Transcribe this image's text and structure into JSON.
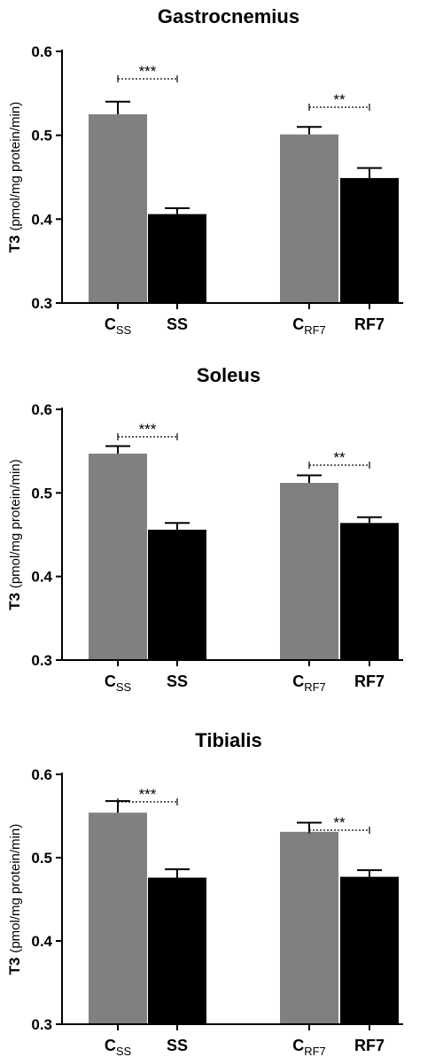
{
  "figure": {
    "colors": {
      "control": "#808080",
      "treated": "#000000",
      "axis": "#000000"
    }
  },
  "chart_data": [
    {
      "type": "bar",
      "title": "Gastrocnemius",
      "ylabel_main": "T3",
      "ylabel_unit": "(pmol/mg protein/min)",
      "ylim": [
        0.3,
        0.6
      ],
      "yticks": [
        0.3,
        0.4,
        0.5,
        0.6
      ],
      "ytick_labels": [
        "0.3",
        "0.4",
        "0.5",
        "0.6"
      ],
      "categories": [
        {
          "main": "C",
          "sub": "SS"
        },
        {
          "main": "SS",
          "sub": ""
        },
        {
          "main": "C",
          "sub": "RF7"
        },
        {
          "main": "RF7",
          "sub": ""
        }
      ],
      "values": [
        0.525,
        0.406,
        0.501,
        0.449
      ],
      "errors": [
        0.015,
        0.007,
        0.009,
        0.012
      ],
      "significance": [
        {
          "from": 0,
          "to": 1,
          "label": "***"
        },
        {
          "from": 2,
          "to": 3,
          "label": "**"
        }
      ],
      "grid": false,
      "legend": "none"
    },
    {
      "type": "bar",
      "title": "Soleus",
      "ylabel_main": "T3",
      "ylabel_unit": "(pmol/mg protein/min)",
      "ylim": [
        0.3,
        0.6
      ],
      "yticks": [
        0.3,
        0.4,
        0.5,
        0.6
      ],
      "ytick_labels": [
        "0.3",
        "0.4",
        "0.5",
        "0.6"
      ],
      "categories": [
        {
          "main": "C",
          "sub": "SS"
        },
        {
          "main": "SS",
          "sub": ""
        },
        {
          "main": "C",
          "sub": "RF7"
        },
        {
          "main": "RF7",
          "sub": ""
        }
      ],
      "values": [
        0.547,
        0.456,
        0.512,
        0.464
      ],
      "errors": [
        0.009,
        0.008,
        0.009,
        0.007
      ],
      "significance": [
        {
          "from": 0,
          "to": 1,
          "label": "***"
        },
        {
          "from": 2,
          "to": 3,
          "label": "**"
        }
      ],
      "grid": false,
      "legend": "none"
    },
    {
      "type": "bar",
      "title": "Tibialis",
      "ylabel_main": "T3",
      "ylabel_unit": "(pmol/mg protein/min)",
      "ylim": [
        0.3,
        0.6
      ],
      "yticks": [
        0.3,
        0.4,
        0.5,
        0.6
      ],
      "ytick_labels": [
        "0.3",
        "0.4",
        "0.5",
        "0.6"
      ],
      "categories": [
        {
          "main": "C",
          "sub": "SS"
        },
        {
          "main": "SS",
          "sub": ""
        },
        {
          "main": "C",
          "sub": "RF7"
        },
        {
          "main": "RF7",
          "sub": ""
        }
      ],
      "values": [
        0.554,
        0.476,
        0.531,
        0.477
      ],
      "errors": [
        0.014,
        0.01,
        0.011,
        0.008
      ],
      "significance": [
        {
          "from": 0,
          "to": 1,
          "label": "***"
        },
        {
          "from": 2,
          "to": 3,
          "label": "**"
        }
      ],
      "grid": false,
      "legend": "none"
    }
  ]
}
